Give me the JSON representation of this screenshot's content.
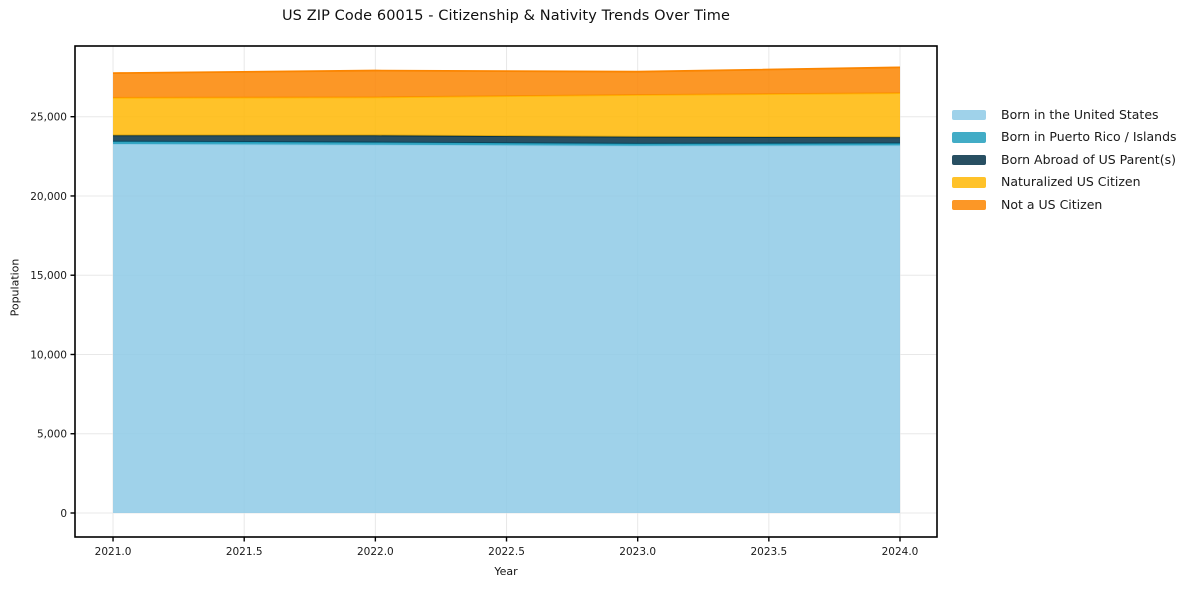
{
  "figure": {
    "background": "#ffffff",
    "spine_color": "#000000",
    "tick_label_color": "#1a1a1a"
  },
  "chart_data": {
    "type": "area",
    "stacked": true,
    "title": "US ZIP Code 60015 - Citizenship & Nativity Trends Over Time",
    "xlabel": "Year",
    "ylabel": "Population",
    "x": [
      2021,
      2022,
      2023,
      2024
    ],
    "series": [
      {
        "name": "Born in the United States",
        "color": "#8ecae6",
        "values": [
          23280,
          23230,
          23170,
          23190
        ]
      },
      {
        "name": "Born in Puerto Rico / Islands",
        "color": "#219ebc",
        "values": [
          150,
          145,
          125,
          125
        ]
      },
      {
        "name": "Born Abroad of US Parent(s)",
        "color": "#023047",
        "values": [
          390,
          445,
          440,
          390
        ]
      },
      {
        "name": "Naturalized US Citizen",
        "color": "#ffb703",
        "values": [
          2370,
          2400,
          2635,
          2780
        ]
      },
      {
        "name": "Not a US Citizen",
        "color": "#fb8500",
        "values": [
          1560,
          1690,
          1470,
          1625
        ]
      }
    ],
    "totals": [
      27750,
      27910,
      27840,
      28110
    ],
    "fill_alpha": 0.85,
    "line_width": 1.8,
    "x_ticks": {
      "values": [
        2021.0,
        2021.5,
        2022.0,
        2022.5,
        2023.0,
        2023.5,
        2024.0
      ],
      "labels": [
        "2021.0",
        "2021.5",
        "2022.0",
        "2022.5",
        "2023.0",
        "2023.5",
        "2024.0"
      ]
    },
    "y_ticks": {
      "values": [
        0,
        5000,
        10000,
        15000,
        20000,
        25000
      ],
      "labels": [
        "0",
        "5,000",
        "10,000",
        "15,000",
        "20,000",
        "25,000"
      ]
    },
    "xlim": [
      2020.855,
      2024.141
    ],
    "ylim": [
      -1514,
      29460
    ],
    "grid": true,
    "grid_color": "#e8e8e8",
    "legend_position": "right-outside"
  }
}
